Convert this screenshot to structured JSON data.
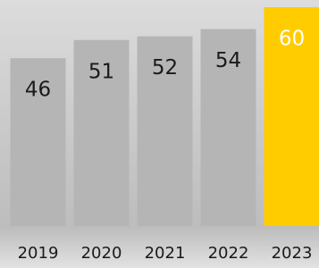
{
  "chart_data": {
    "type": "bar",
    "categories": [
      "2019",
      "2020",
      "2021",
      "2022",
      "2023"
    ],
    "values": [
      46,
      51,
      52,
      54,
      60
    ],
    "colors": [
      "#b5b5b5",
      "#b5b5b5",
      "#b5b5b5",
      "#b5b5b5",
      "#ffcc00"
    ],
    "label_colors": [
      "#1a1a1a",
      "#1a1a1a",
      "#1a1a1a",
      "#1a1a1a",
      "#ffffff"
    ],
    "ylim": [
      0,
      60
    ]
  }
}
